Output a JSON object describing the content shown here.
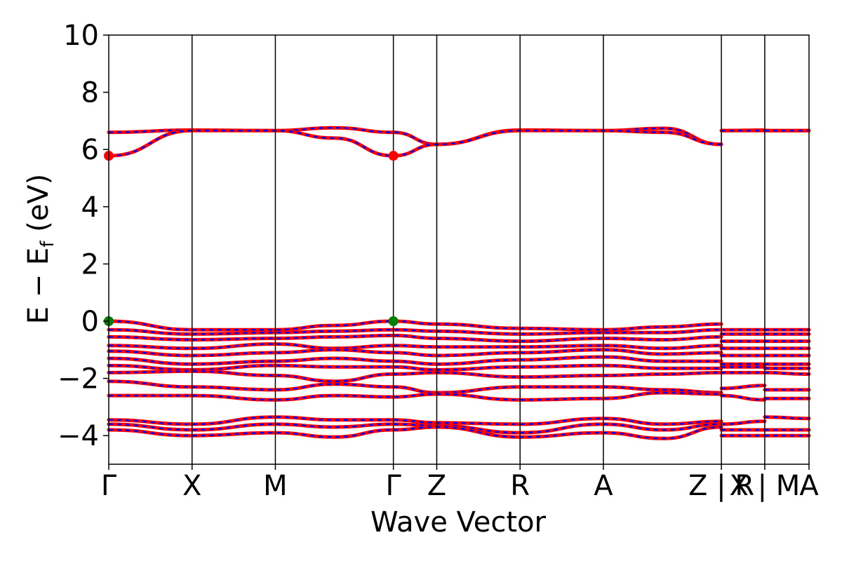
{
  "chart_data": {
    "type": "line",
    "title": "",
    "xlabel": "Wave Vector",
    "ylabel": "E − E",
    "ylabel_sub": "f",
    "ylabel_unit": " (eV)",
    "ylim": [
      -5,
      10
    ],
    "yticks": [
      -4,
      -2,
      0,
      2,
      4,
      6,
      8,
      10
    ],
    "ytick_labels": [
      "−4",
      "−2",
      "0",
      "2",
      "4",
      "6",
      "8",
      "10"
    ],
    "xlim": [
      0,
      8.07
    ],
    "kpoint_positions": [
      0,
      0.96,
      1.92,
      3.28,
      3.78,
      4.74,
      5.7,
      7.06,
      7.56,
      8.07
    ],
    "kpoint_labels": [
      "Γ",
      "X",
      "M",
      "Γ",
      "Z",
      "R",
      "A",
      "Z | R",
      "X | M",
      "A"
    ],
    "path_breaks": [
      7.06,
      7.56
    ],
    "colors": {
      "spin_up": "#ff0000",
      "spin_down": "#0000ff",
      "vbm": "#008000",
      "cbm": "#ff0000"
    },
    "grid": false,
    "legend": "none",
    "cbm": {
      "energy": 5.78,
      "kpoints": [
        "Γ",
        "Γ"
      ],
      "x": [
        0,
        3.28
      ]
    },
    "vbm": {
      "energy": 0.0,
      "kpoints": [
        "Γ",
        "Γ"
      ],
      "x": [
        0,
        3.28
      ]
    },
    "conduction_bands": [
      {
        "name": "",
        "x": [
          0,
          0.96,
          1.92,
          2.6,
          3.28,
          3.78,
          4.74,
          5.7,
          6.4,
          7.06,
          7.06,
          7.56,
          7.56,
          8.07
        ],
        "y": [
          6.6,
          6.68,
          6.66,
          6.76,
          6.6,
          6.18,
          6.68,
          6.66,
          6.74,
          6.18,
          6.66,
          6.68,
          6.66,
          6.66
        ]
      },
      {
        "name": "",
        "x": [
          0,
          0.96,
          1.92,
          2.6,
          3.28,
          3.78,
          4.74,
          5.7,
          6.4,
          7.06,
          7.06,
          7.56,
          7.56,
          8.07
        ],
        "y": [
          5.78,
          6.66,
          6.66,
          6.4,
          5.78,
          6.18,
          6.66,
          6.66,
          6.6,
          6.18,
          6.66,
          6.66,
          6.66,
          6.66
        ]
      }
    ],
    "valence_bands": [
      {
        "x": [
          0,
          0.96,
          1.92,
          2.6,
          3.28,
          3.78,
          4.74,
          5.7,
          6.4,
          7.06,
          7.06,
          7.56,
          7.56,
          8.07
        ],
        "y": [
          0.0,
          -0.3,
          -0.3,
          -0.15,
          0.0,
          -0.1,
          -0.25,
          -0.3,
          -0.2,
          -0.1,
          -0.3,
          -0.3,
          -0.3,
          -0.3
        ]
      },
      {
        "x": [
          0,
          0.96,
          1.92,
          2.6,
          3.28,
          3.78,
          4.74,
          5.7,
          6.4,
          7.06,
          7.06,
          7.56,
          7.56,
          8.07
        ],
        "y": [
          -0.3,
          -0.45,
          -0.4,
          -0.35,
          -0.3,
          -0.35,
          -0.45,
          -0.4,
          -0.4,
          -0.3,
          -0.45,
          -0.45,
          -0.45,
          -0.45
        ]
      },
      {
        "x": [
          0,
          0.96,
          1.92,
          2.6,
          3.28,
          3.78,
          4.74,
          5.7,
          6.4,
          7.06,
          7.06,
          7.56,
          7.56,
          8.07
        ],
        "y": [
          -0.55,
          -0.65,
          -0.6,
          -0.55,
          -0.5,
          -0.6,
          -0.7,
          -0.6,
          -0.65,
          -0.55,
          -0.7,
          -0.7,
          -0.7,
          -0.7
        ]
      },
      {
        "x": [
          0,
          0.96,
          1.92,
          2.6,
          3.28,
          3.78,
          4.74,
          5.7,
          6.4,
          7.06,
          7.06,
          7.56,
          7.56,
          8.07
        ],
        "y": [
          -0.85,
          -0.95,
          -0.8,
          -0.95,
          -0.85,
          -0.9,
          -0.9,
          -0.85,
          -0.95,
          -0.85,
          -0.95,
          -0.95,
          -0.95,
          -0.95
        ]
      },
      {
        "x": [
          0,
          0.96,
          1.92,
          2.6,
          3.28,
          3.78,
          4.74,
          5.7,
          6.4,
          7.06,
          7.06,
          7.56,
          7.56,
          8.07
        ],
        "y": [
          -1.05,
          -1.2,
          -1.1,
          -1.0,
          -1.1,
          -1.2,
          -1.1,
          -1.0,
          -1.15,
          -1.1,
          -1.2,
          -1.2,
          -1.2,
          -1.2
        ]
      },
      {
        "x": [
          0,
          0.96,
          1.92,
          2.6,
          3.28,
          3.78,
          4.74,
          5.7,
          6.4,
          7.06,
          7.06,
          7.56,
          7.56,
          8.07
        ],
        "y": [
          -1.3,
          -1.5,
          -1.4,
          -1.3,
          -1.4,
          -1.5,
          -1.35,
          -1.25,
          -1.4,
          -1.4,
          -1.5,
          -1.5,
          -1.5,
          -1.5
        ]
      },
      {
        "x": [
          0,
          0.96,
          1.92,
          2.6,
          3.28,
          3.78,
          4.74,
          5.7,
          6.4,
          7.06,
          7.06,
          7.56,
          7.56,
          8.07
        ],
        "y": [
          -1.55,
          -1.7,
          -1.55,
          -1.6,
          -1.6,
          -1.7,
          -1.6,
          -1.55,
          -1.65,
          -1.65,
          -1.6,
          -1.6,
          -1.65,
          -1.65
        ]
      },
      {
        "x": [
          0,
          0.96,
          1.92,
          2.6,
          3.28,
          3.78,
          4.74,
          5.7,
          6.4,
          7.06,
          7.06,
          7.56,
          7.56,
          8.07
        ],
        "y": [
          -1.8,
          -1.75,
          -1.9,
          -2.1,
          -1.85,
          -1.8,
          -1.95,
          -1.9,
          -1.85,
          -1.8,
          -1.8,
          -1.8,
          -1.8,
          -1.85
        ]
      },
      {
        "x": [
          0,
          0.96,
          1.92,
          2.6,
          3.28,
          3.78,
          4.74,
          5.7,
          6.4,
          7.06,
          7.06,
          7.56,
          7.56,
          8.07
        ],
        "y": [
          -2.1,
          -2.3,
          -2.4,
          -2.2,
          -2.3,
          -2.5,
          -2.3,
          -2.3,
          -2.4,
          -2.5,
          -2.35,
          -2.25,
          -2.4,
          -2.4
        ]
      },
      {
        "x": [
          0,
          0.96,
          1.92,
          2.6,
          3.28,
          3.78,
          4.74,
          5.7,
          6.4,
          7.06,
          7.06,
          7.56,
          7.56,
          8.07
        ],
        "y": [
          -2.6,
          -2.6,
          -2.75,
          -2.6,
          -2.65,
          -2.55,
          -2.75,
          -2.7,
          -2.5,
          -2.55,
          -2.6,
          -2.75,
          -2.7,
          -2.7
        ]
      },
      {
        "x": [
          0,
          0.96,
          1.92,
          2.6,
          3.28,
          3.78,
          4.74,
          5.7,
          6.4,
          7.06,
          7.06,
          7.56,
          7.56,
          8.07
        ],
        "y": [
          -3.45,
          -3.6,
          -3.35,
          -3.45,
          -3.45,
          -3.55,
          -3.6,
          -3.4,
          -3.6,
          -3.5,
          -3.6,
          -3.5,
          -3.35,
          -3.4
        ]
      },
      {
        "x": [
          0,
          0.96,
          1.92,
          2.6,
          3.28,
          3.78,
          4.74,
          5.7,
          6.4,
          7.06,
          7.06,
          7.56,
          7.56,
          8.07
        ],
        "y": [
          -3.6,
          -3.8,
          -3.6,
          -3.7,
          -3.6,
          -3.65,
          -3.9,
          -3.6,
          -3.8,
          -3.6,
          -3.8,
          -3.8,
          -3.8,
          -3.8
        ]
      },
      {
        "x": [
          0,
          0.96,
          1.92,
          2.6,
          3.28,
          3.78,
          4.74,
          5.7,
          6.4,
          7.06,
          7.06,
          7.56,
          7.56,
          8.07
        ],
        "y": [
          -3.8,
          -4.0,
          -3.9,
          -4.05,
          -3.8,
          -3.7,
          -4.05,
          -3.9,
          -4.1,
          -3.7,
          -4.0,
          -4.0,
          -4.0,
          -4.0
        ]
      }
    ]
  }
}
